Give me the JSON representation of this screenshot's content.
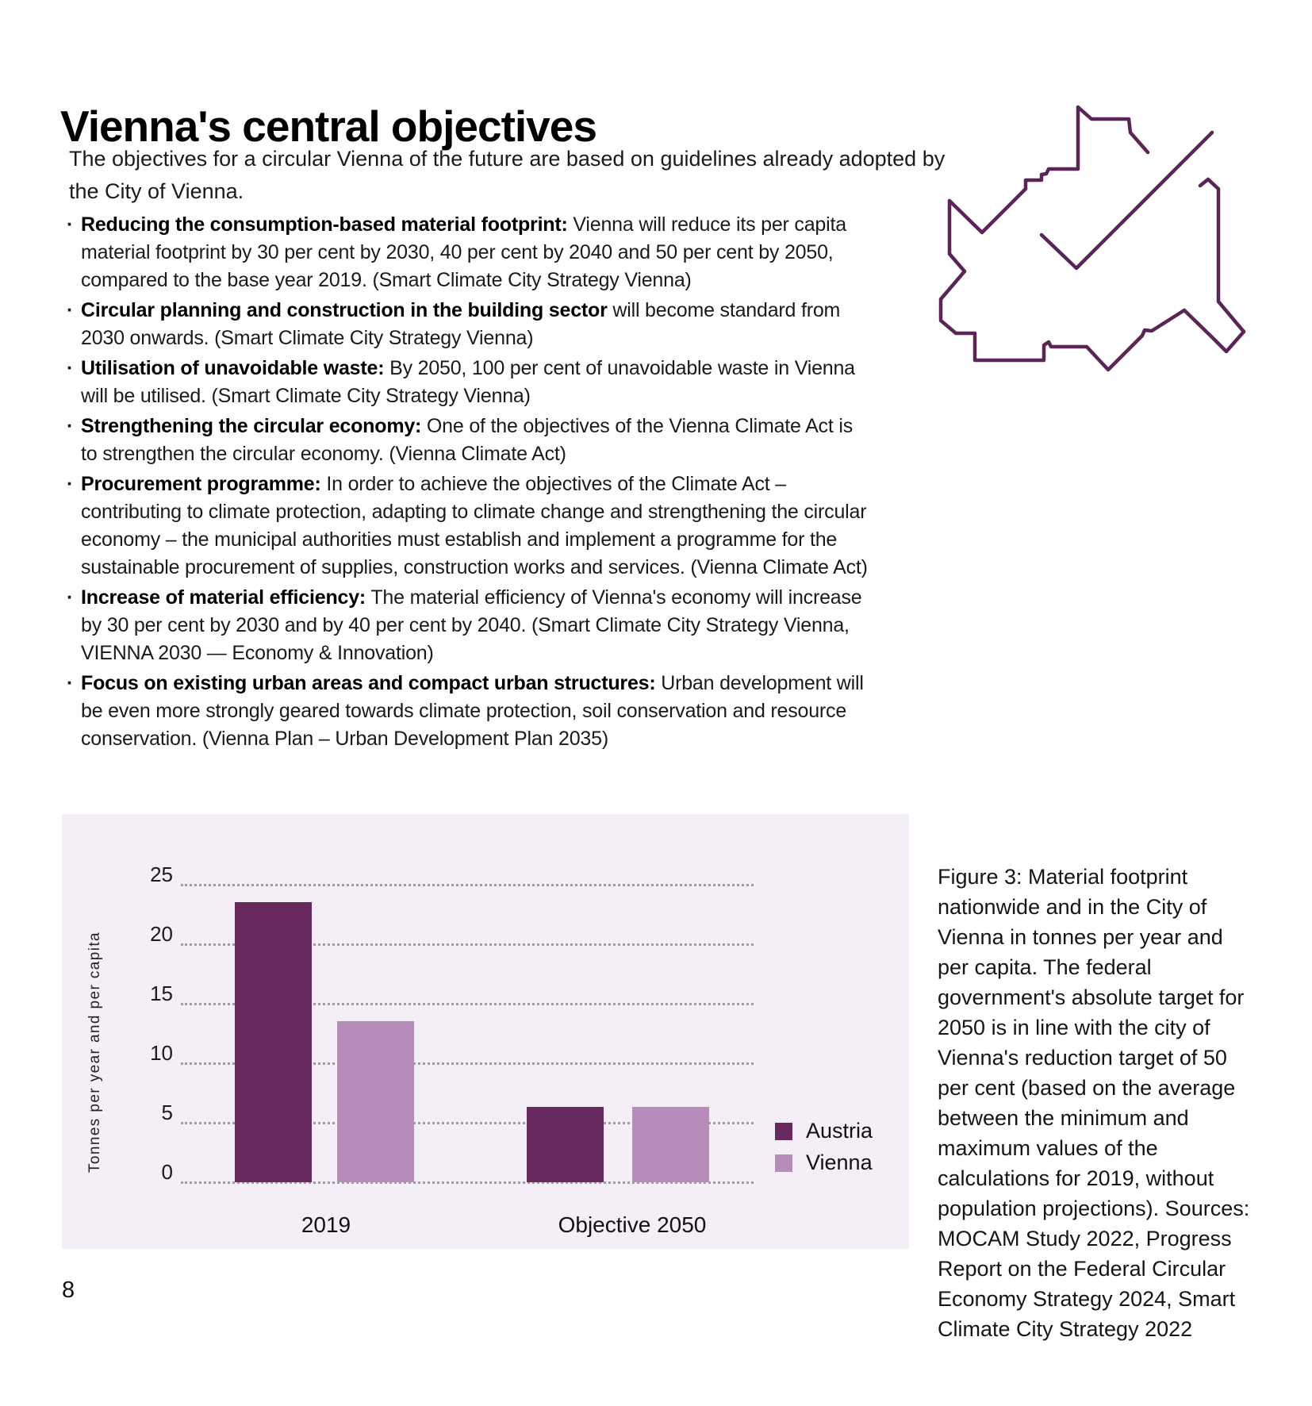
{
  "page": {
    "title": "Vienna's central objectives",
    "page_number": "8"
  },
  "intro": {
    "lines": [
      "The objectives for a circular Vienna of the future are based on guidelines already adopted by",
      "the City of Vienna."
    ]
  },
  "objectives": [
    {
      "bold": "Reducing the consumption-based material footprint:",
      "rest": " Vienna will reduce its per capita material footprint by 30 per cent by 2030, 40 per cent by 2040 and 50 per cent by 2050, compared to the base year 2019. (Smart Climate City Strategy Vienna)"
    },
    {
      "bold": "Circular planning and construction in the building sector",
      "rest": " will become standard from 2030 onwards. (Smart Climate City Strategy Vienna)"
    },
    {
      "bold": "Utilisation of unavoidable waste:",
      "rest": " By 2050, 100 per cent of unavoidable waste in Vienna will be utilised. (Smart Climate City Strategy Vienna)"
    },
    {
      "bold": "Strengthening the circular economy:",
      "rest": " One of the objectives of the Vienna Climate Act is to strengthen the circular economy. (Vienna Climate Act)"
    },
    {
      "bold": "Procurement programme:",
      "rest": " In order to achieve the objectives of the Climate Act – contributing to climate protection, adapting to climate change and strengthening the circular economy – the municipal authorities must establish and implement a programme for the sustainable procurement of supplies, construction works and services. (Vienna Climate Act)"
    },
    {
      "bold": "Increase of material efficiency:",
      "rest": " The material efficiency of Vienna's economy will increase by 30 per cent by 2030 and by 40 per cent by 2040. (Smart Climate City Strategy Vienna, VIENNA 2030 — Economy & Innovation)"
    },
    {
      "bold": "Focus on existing urban areas and compact urban structures:",
      "rest": " Urban development will be even more strongly geared towards climate protection, soil conservation and resource conservation. (Vienna Plan – Urban Development Plan 2035)"
    }
  ],
  "figure_caption": "Figure 3: Material footprint nationwide and in the City of Vienna in tonnes per year and per capita. The federal government's absolute target for 2050 is in line with the city of Vienna's reduction target of 50 per cent (based on the average between the minimum and maximum values of the calculations for 2019, without population projections). Sources: MOCAM Study 2022, Progress Report on the Federal Circular Economy Strategy 2024, Smart Climate City Strategy 2022",
  "chart_data": {
    "type": "bar",
    "categories": [
      "2019",
      "Objective 2050"
    ],
    "series": [
      {
        "name": "Austria",
        "color": "#68295f",
        "values": [
          23.5,
          6.3
        ]
      },
      {
        "name": "Vienna",
        "color": "#b78cba",
        "values": [
          13.5,
          6.3
        ]
      }
    ],
    "ylabel": "Tonnes per year and per capita",
    "yticks": [
      0,
      5,
      10,
      15,
      20,
      25
    ],
    "ylim": [
      0,
      25
    ],
    "grid": "dotted horizontal gridlines",
    "legend_position": "right",
    "panel_background": "#f4eef6"
  },
  "colors": {
    "austria_bar": "#68295f",
    "vienna_bar": "#b78cba",
    "panel_background": "#f4eef6",
    "map_outline": "#5b2457",
    "gridline": "#a29ba5"
  }
}
